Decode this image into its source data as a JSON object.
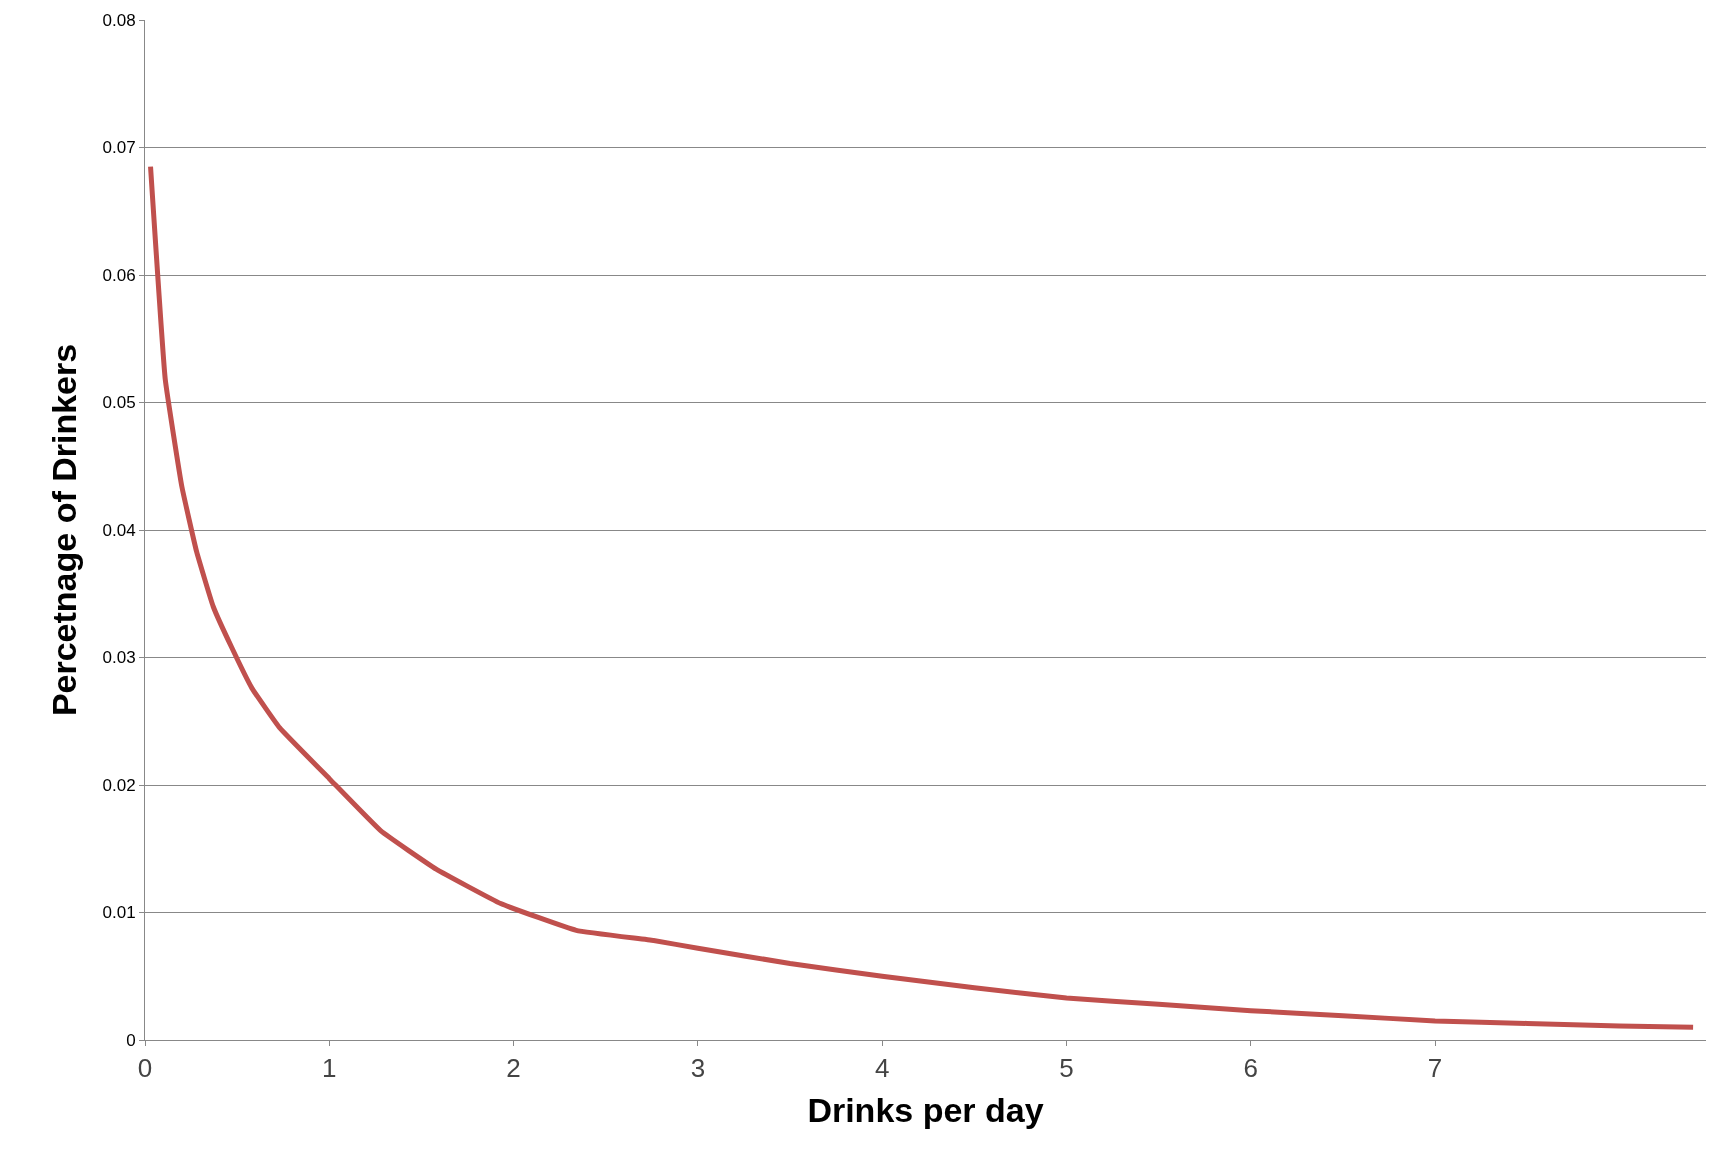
{
  "chart_data": {
    "type": "line",
    "xlabel": "Drinks per day",
    "ylabel": "Percetnage of Drinkers",
    "x": [
      0.03,
      0.11,
      0.2,
      0.28,
      0.37,
      0.47,
      0.58,
      0.73,
      1.0,
      1.28,
      1.58,
      1.93,
      2.34,
      2.76,
      3.0,
      3.5,
      4.0,
      4.5,
      5.0,
      5.5,
      6.0,
      6.5,
      7.0,
      7.5,
      8.0,
      8.4
    ],
    "series": [
      {
        "color": "#c0504d",
        "values": [
          0.0685,
          0.0518,
          0.0434,
          0.0383,
          0.034,
          0.0308,
          0.0276,
          0.0245,
          0.0205,
          0.0164,
          0.0134,
          0.0107,
          0.0086,
          0.0078,
          0.0072,
          0.006,
          0.005,
          0.0041,
          0.0033,
          0.0028,
          0.0023,
          0.0019,
          0.0015,
          0.0013,
          0.0011,
          0.001
        ]
      }
    ],
    "xlim": [
      0,
      8.47
    ],
    "xticks": [
      0,
      1,
      2,
      3,
      4,
      5,
      6,
      7
    ],
    "ylim": [
      0,
      0.08
    ],
    "yticks": [
      0,
      0.01,
      0.02,
      0.03,
      0.04,
      0.05,
      0.06,
      0.07,
      0.08
    ],
    "grid": "y",
    "legend": false,
    "marker": "none",
    "line_style": "solid"
  }
}
